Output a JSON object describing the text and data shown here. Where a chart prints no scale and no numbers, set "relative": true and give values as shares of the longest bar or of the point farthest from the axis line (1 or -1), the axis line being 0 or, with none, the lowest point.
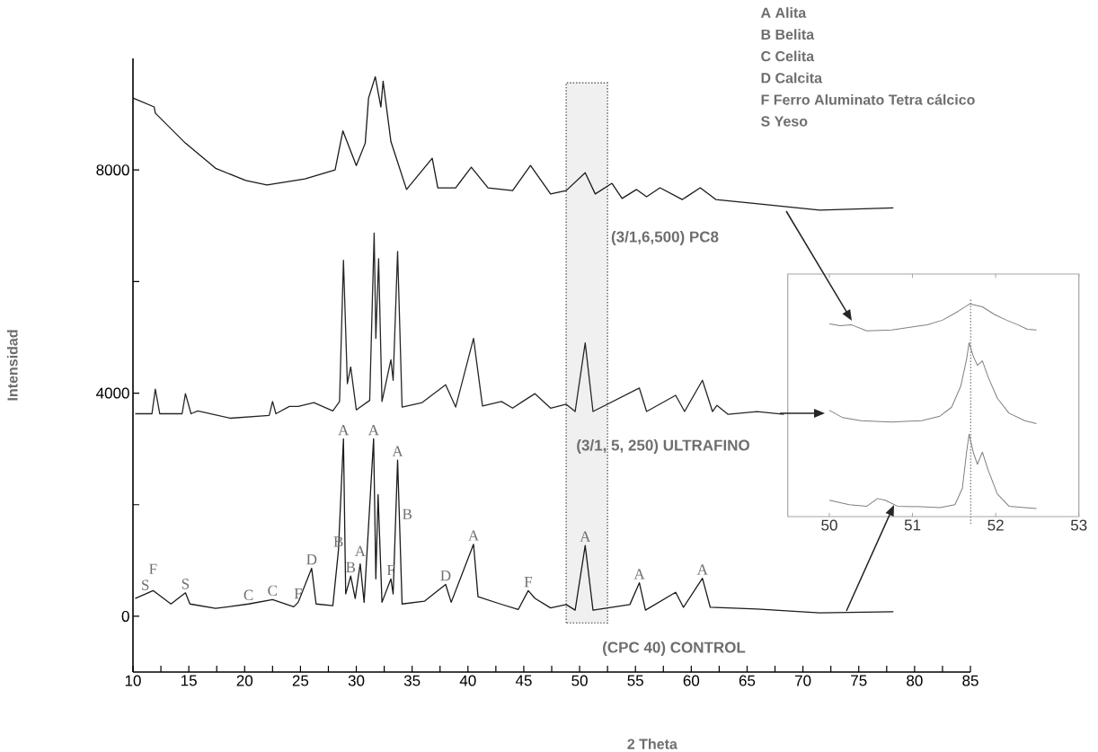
{
  "chart_data": [
    {
      "type": "line",
      "xlabel": "2 Theta",
      "ylabel": "Intensidad",
      "xlim": [
        10,
        85
      ],
      "xticks": [
        10,
        {
          "value": 12.5,
          "label": null
        },
        15,
        {
          "value": 17.5,
          "label": null
        },
        20,
        {
          "value": 22.5,
          "label": null
        },
        25,
        {
          "value": 27.5,
          "label": null
        },
        30,
        {
          "value": 32.5,
          "label": null
        },
        35,
        {
          "value": 37.5,
          "label": null
        },
        40,
        {
          "value": 42.5,
          "label": null
        },
        45,
        {
          "value": 47.5,
          "label": null
        },
        50,
        {
          "value": 52.5,
          "label": null
        },
        55,
        {
          "value": 57.5,
          "label": null
        },
        60,
        {
          "value": 62.5,
          "label": null
        },
        65,
        {
          "value": 67.5,
          "label": null
        },
        70,
        {
          "value": 72.5,
          "label": null
        },
        75,
        {
          "value": 77.5,
          "label": null
        },
        80,
        {
          "value": 82.5,
          "label": null
        },
        85
      ],
      "ylim": [
        -1000,
        10000
      ],
      "yticks": [
        0,
        {
          "value": 2000,
          "label": null
        },
        4000,
        {
          "value": 6000,
          "label": null
        },
        8000
      ],
      "series": [
        {
          "name": "(3/1,6,500) PC8",
          "color": "#1a1a1a",
          "x": [
            10.0,
            11.9,
            12.0,
            14.7,
            17.4,
            20.1,
            22.0,
            25.4,
            28.1,
            28.8,
            30.0,
            30.8,
            31.1,
            31.7,
            32.2,
            32.4,
            33.1,
            34.5,
            36.8,
            37.3,
            38.9,
            40.3,
            41.8,
            44.0,
            45.6,
            47.4,
            48.8,
            50.5,
            51.4,
            52.9,
            53.8,
            55.1,
            56.0,
            57.2,
            59.2,
            60.8,
            62.2,
            66.2,
            71.5,
            78.1
          ],
          "values": [
            9290,
            9130,
            9020,
            8480,
            8030,
            7810,
            7730,
            7840,
            8000,
            8700,
            8080,
            8480,
            9290,
            9670,
            9130,
            9590,
            8510,
            7650,
            8210,
            7680,
            7680,
            8050,
            7680,
            7630,
            8080,
            7570,
            7630,
            7950,
            7570,
            7760,
            7490,
            7650,
            7520,
            7680,
            7470,
            7680,
            7470,
            7390,
            7280,
            7320
          ]
        },
        {
          "name": "(3/1, 5, 250) ULTRAFINO",
          "color": "#262626",
          "x": [
            10.2,
            11.7,
            12.0,
            12.4,
            14.4,
            14.7,
            15.2,
            15.8,
            18.7,
            22.2,
            22.5,
            22.8,
            24.0,
            24.8,
            26.2,
            27.9,
            28.5,
            28.85,
            29.2,
            29.5,
            30.0,
            31.2,
            31.6,
            31.75,
            32.0,
            32.3,
            33.1,
            33.3,
            33.7,
            34.1,
            35.9,
            38.0,
            38.9,
            40.5,
            41.3,
            43.0,
            44.0,
            44.9,
            46.0,
            47.4,
            48.8,
            49.6,
            50.5,
            51.2,
            55.35,
            56.0,
            58.6,
            59.4,
            61.0,
            61.9,
            62.3,
            63.3,
            65.9,
            68.3
          ],
          "values": [
            3630,
            3630,
            4070,
            3630,
            3630,
            3990,
            3630,
            3680,
            3550,
            3600,
            3850,
            3630,
            3760,
            3760,
            3830,
            3680,
            3850,
            6380,
            4170,
            4470,
            3700,
            3870,
            6870,
            4980,
            6410,
            3850,
            4600,
            4230,
            6540,
            3750,
            3830,
            4150,
            3750,
            4980,
            3770,
            3850,
            3730,
            3850,
            3990,
            3730,
            3800,
            3670,
            4900,
            3670,
            4090,
            3670,
            3960,
            3670,
            4230,
            3670,
            3780,
            3620,
            3670,
            3620
          ]
        },
        {
          "name": "(CPC 40) CONTROL",
          "color": "#1a1a1a",
          "x": [
            10.2,
            11.8,
            13.4,
            14.7,
            15.1,
            17.4,
            20.35,
            22.5,
            24.4,
            24.8,
            26.0,
            26.4,
            27.9,
            28.4,
            28.85,
            29.05,
            29.5,
            29.9,
            30.35,
            30.7,
            31.55,
            31.75,
            31.95,
            32.3,
            33.1,
            33.3,
            33.7,
            34.1,
            36.1,
            38.0,
            38.5,
            40.5,
            40.9,
            42.9,
            44.5,
            45.4,
            46.0,
            47.4,
            48.8,
            49.6,
            50.5,
            51.2,
            54.5,
            55.35,
            55.9,
            58.6,
            59.3,
            61.0,
            61.7,
            65.9,
            71.5,
            78.1
          ],
          "values": [
            320,
            460,
            220,
            420,
            220,
            140,
            220,
            300,
            170,
            250,
            860,
            220,
            190,
            1180,
            3180,
            400,
            720,
            320,
            940,
            250,
            3180,
            670,
            2180,
            250,
            670,
            400,
            2800,
            220,
            270,
            570,
            250,
            1290,
            350,
            220,
            120,
            460,
            320,
            150,
            210,
            110,
            1270,
            110,
            210,
            600,
            110,
            430,
            160,
            680,
            160,
            130,
            60,
            80
          ]
        }
      ],
      "bands": [
        {
          "axis": "x",
          "from": 48.8,
          "to": 52.5,
          "color": "#f0f0f0"
        }
      ],
      "annotations": [
        "A  Alita",
        "B  Belita",
        "C  Celita",
        "D  Calcita",
        "F  Ferro Aluminato Tetra cálcico",
        "S  Yeso",
        {
          "text": "S",
          "x": 11.1,
          "y": 400
        },
        {
          "text": "F",
          "x": 11.8,
          "y": 460
        },
        {
          "text": "S",
          "x": 14.7,
          "y": 420
        },
        {
          "text": "C",
          "x": 20.35,
          "y": 220
        },
        {
          "text": "C",
          "x": 22.5,
          "y": 300
        },
        {
          "text": "F",
          "x": 24.8,
          "y": 250
        },
        {
          "text": "D",
          "x": 26.0,
          "y": 860
        },
        {
          "text": "B",
          "x": 28.4,
          "y": 1180
        },
        {
          "text": "A",
          "x": 28.85,
          "y": 3180
        },
        {
          "text": "B",
          "x": 29.5,
          "y": 720
        },
        {
          "text": "A",
          "x": 30.35,
          "y": 940
        },
        {
          "text": "A",
          "x": 31.55,
          "y": 3180
        },
        {
          "text": "A",
          "x": 33.7,
          "y": 2800
        },
        {
          "text": "F",
          "x": 33.1,
          "y": 670
        },
        {
          "text": "B",
          "x": 33.85,
          "y": 1830
        },
        {
          "text": "D",
          "x": 38.0,
          "y": 570
        },
        {
          "text": "A",
          "x": 40.5,
          "y": 1290
        },
        {
          "text": "F",
          "x": 45.4,
          "y": 460
        },
        {
          "text": "A",
          "x": 50.5,
          "y": 1270
        },
        {
          "text": "A",
          "x": 55.35,
          "y": 600
        },
        {
          "text": "A",
          "x": 61.0,
          "y": 680
        }
      ]
    },
    {
      "type": "line",
      "relative": true,
      "tick_labels": "x",
      "xlim": [
        49.5,
        53
      ],
      "xticks": [
        50,
        51,
        52,
        53
      ],
      "series": [
        {
          "color": "#7f7f7f",
          "x": [
            50.0,
            50.13,
            50.27,
            50.45,
            50.75,
            51.04,
            51.18,
            51.36,
            51.55,
            51.69,
            51.84,
            51.98,
            52.13,
            52.27,
            52.38,
            52.49
          ],
          "values": [
            0.906,
            0.897,
            0.901,
            0.873,
            0.877,
            0.894,
            0.901,
            0.923,
            0.965,
            1.0,
            0.986,
            0.951,
            0.923,
            0.901,
            0.88,
            0.877
          ]
        },
        {
          "color": "#7f7f7f",
          "x": [
            50.0,
            50.16,
            50.38,
            50.75,
            51.11,
            51.33,
            51.47,
            51.58,
            51.65,
            51.68,
            51.73,
            51.78,
            51.84,
            51.91,
            52.02,
            52.16,
            52.35,
            52.49
          ],
          "values": [
            0.5,
            0.465,
            0.451,
            0.444,
            0.451,
            0.472,
            0.514,
            0.613,
            0.739,
            0.817,
            0.754,
            0.711,
            0.732,
            0.655,
            0.556,
            0.486,
            0.451,
            0.437
          ]
        },
        {
          "color": "#7f7f7f",
          "x": [
            50.0,
            50.24,
            50.45,
            50.58,
            50.67,
            50.82,
            51.11,
            51.33,
            51.51,
            51.6,
            51.65,
            51.68,
            51.73,
            51.78,
            51.84,
            51.91,
            52.02,
            52.16,
            52.35,
            52.49
          ],
          "values": [
            0.077,
            0.056,
            0.049,
            0.085,
            0.077,
            0.049,
            0.046,
            0.042,
            0.056,
            0.134,
            0.303,
            0.387,
            0.303,
            0.246,
            0.303,
            0.218,
            0.106,
            0.049,
            0.042,
            0.038
          ]
        }
      ],
      "ref_lines": [
        {
          "axis": "x",
          "value": 51.7,
          "color": "#7f7f7f",
          "line_style": "dotted"
        }
      ]
    }
  ]
}
